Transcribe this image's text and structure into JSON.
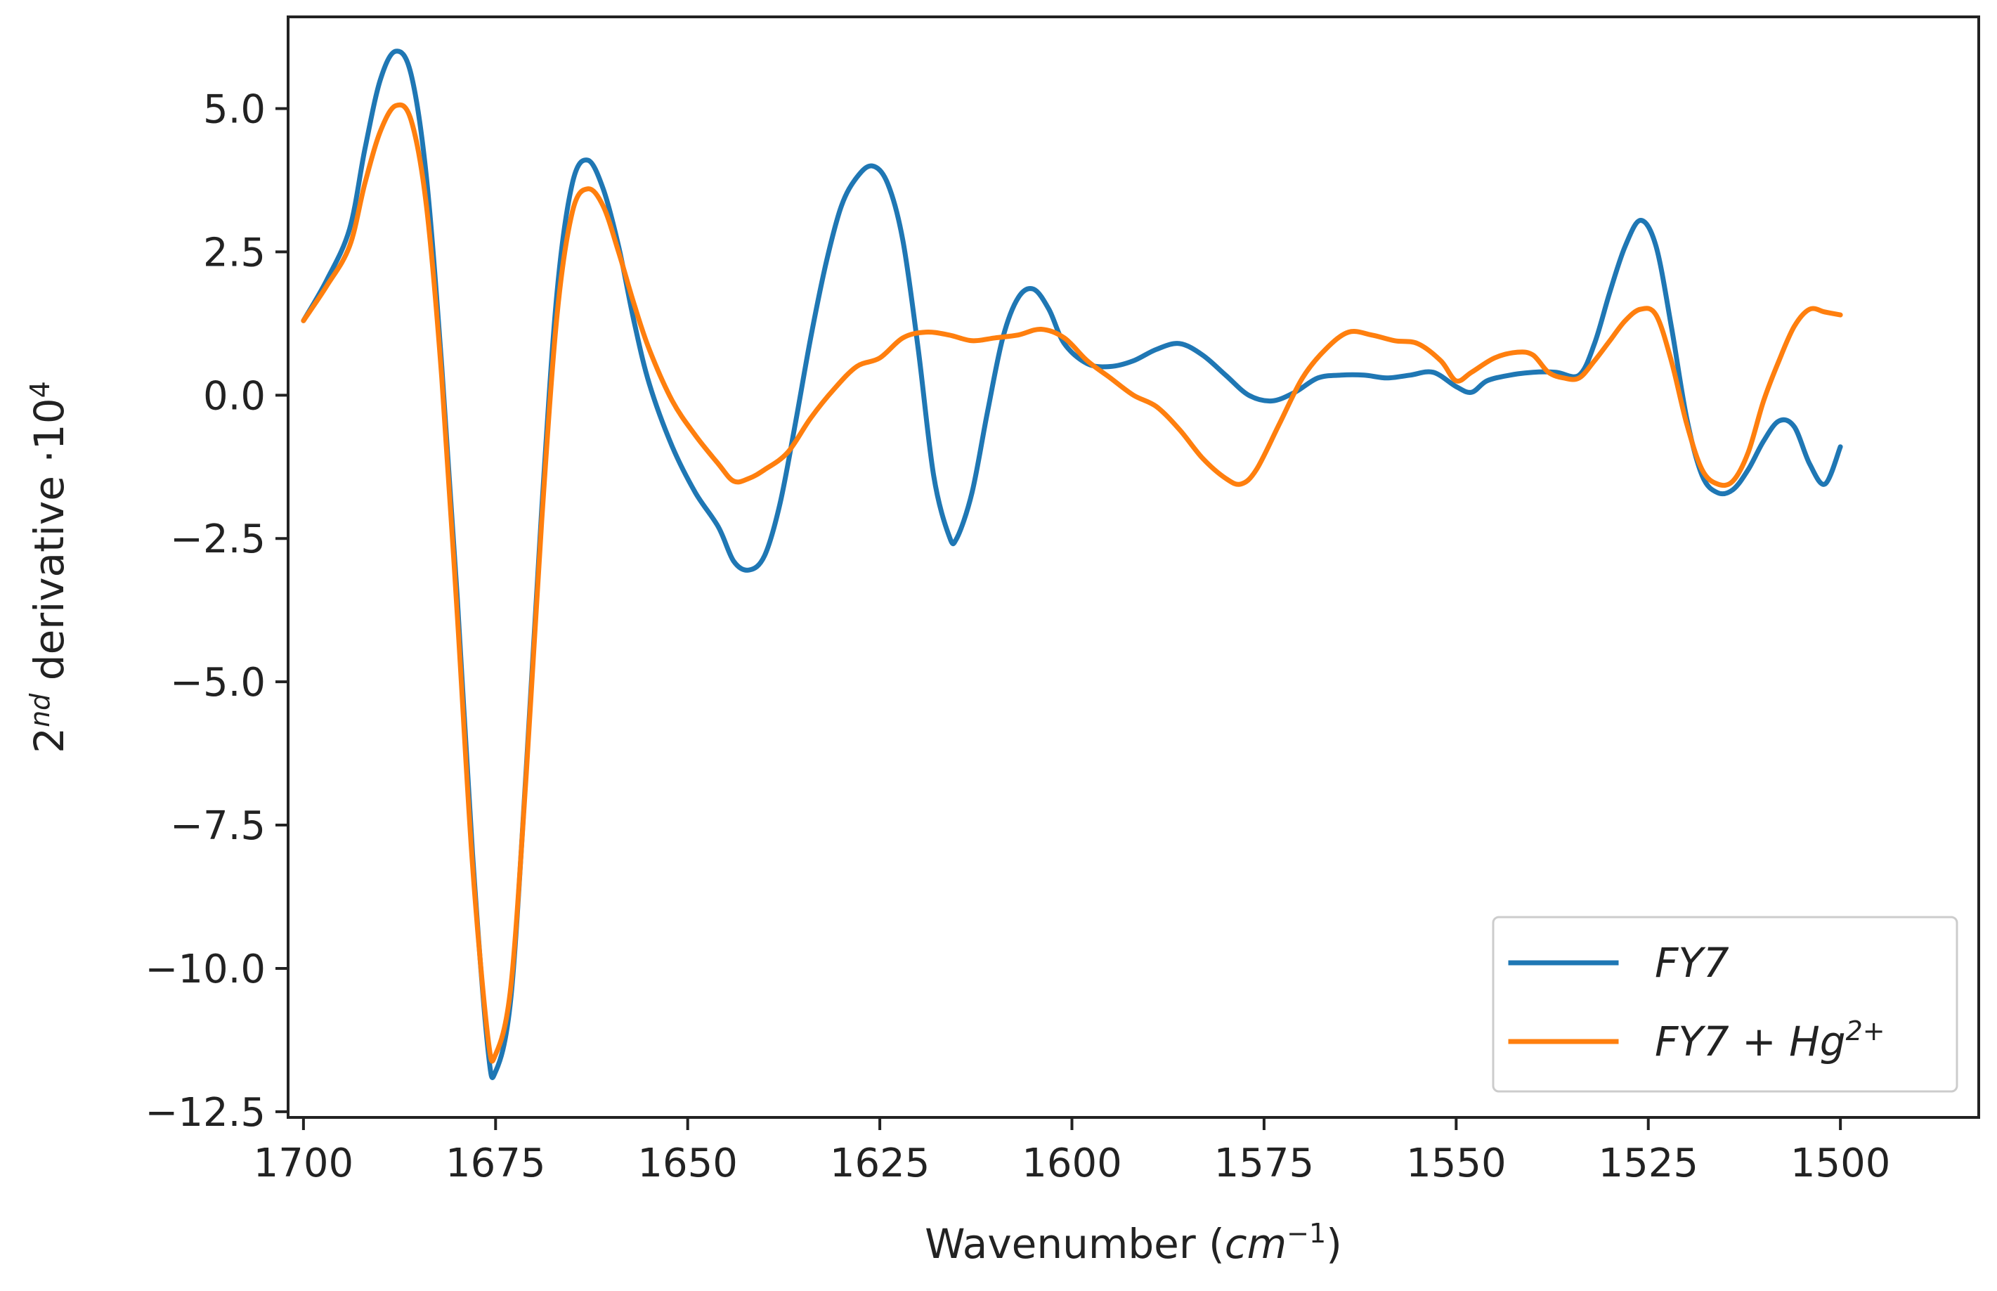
{
  "chart_data": {
    "type": "line",
    "title": "",
    "xlabel": {
      "prefix": "Wavenumber (",
      "base": "cm",
      "sup": "−1",
      "suffix": ")"
    },
    "ylabel": {
      "base": "2",
      "sup1": "nd",
      "mid": " derivative ·10",
      "sup2": "4"
    },
    "xlim": [
      1702,
      1482
    ],
    "ylim": [
      -12.6,
      6.6
    ],
    "x_reversed": true,
    "grid": false,
    "legend_position": "lower-right",
    "xticks": [
      1700,
      1675,
      1650,
      1625,
      1600,
      1575,
      1550,
      1525,
      1500
    ],
    "xtick_labels": [
      "1700",
      "1675",
      "1650",
      "1625",
      "1600",
      "1575",
      "1550",
      "1525",
      "1500"
    ],
    "yticks": [
      5.0,
      2.5,
      0.0,
      -2.5,
      -5.0,
      -7.5,
      -10.0,
      -12.5
    ],
    "ytick_labels": [
      "5.0",
      "2.5",
      "0.0",
      "−2.5",
      "−5.0",
      "−7.5",
      "−10.0",
      "−12.5"
    ],
    "series": [
      {
        "name": "FY7",
        "legend": {
          "base": "FY7",
          "suffix": "",
          "sup": ""
        },
        "color": "#1f77b4",
        "points": [
          [
            1700,
            1.3
          ],
          [
            1697,
            2.0
          ],
          [
            1694,
            2.9
          ],
          [
            1692,
            4.3
          ],
          [
            1690,
            5.5
          ],
          [
            1688,
            6.0
          ],
          [
            1686,
            5.6
          ],
          [
            1684,
            3.8
          ],
          [
            1682,
            0.5
          ],
          [
            1680,
            -3.5
          ],
          [
            1678,
            -8.0
          ],
          [
            1676,
            -11.4
          ],
          [
            1675,
            -11.8
          ],
          [
            1673,
            -10.5
          ],
          [
            1671,
            -6.5
          ],
          [
            1669,
            -2.0
          ],
          [
            1667,
            1.8
          ],
          [
            1665,
            3.7
          ],
          [
            1663,
            4.1
          ],
          [
            1661,
            3.6
          ],
          [
            1659,
            2.6
          ],
          [
            1657,
            1.3
          ],
          [
            1655,
            0.2
          ],
          [
            1652,
            -0.9
          ],
          [
            1649,
            -1.7
          ],
          [
            1646,
            -2.3
          ],
          [
            1644,
            -2.9
          ],
          [
            1642,
            -3.05
          ],
          [
            1640,
            -2.8
          ],
          [
            1638,
            -1.9
          ],
          [
            1636,
            -0.5
          ],
          [
            1634,
            1.0
          ],
          [
            1632,
            2.3
          ],
          [
            1630,
            3.3
          ],
          [
            1628,
            3.8
          ],
          [
            1626,
            4.0
          ],
          [
            1624,
            3.7
          ],
          [
            1622,
            2.7
          ],
          [
            1620,
            0.8
          ],
          [
            1618,
            -1.4
          ],
          [
            1616,
            -2.45
          ],
          [
            1615,
            -2.5
          ],
          [
            1613,
            -1.7
          ],
          [
            1611,
            -0.3
          ],
          [
            1609,
            1.0
          ],
          [
            1607,
            1.7
          ],
          [
            1605,
            1.85
          ],
          [
            1603,
            1.5
          ],
          [
            1601,
            0.9
          ],
          [
            1598,
            0.55
          ],
          [
            1595,
            0.5
          ],
          [
            1592,
            0.6
          ],
          [
            1589,
            0.8
          ],
          [
            1586,
            0.9
          ],
          [
            1583,
            0.7
          ],
          [
            1580,
            0.35
          ],
          [
            1577,
            0.0
          ],
          [
            1574,
            -0.1
          ],
          [
            1571,
            0.05
          ],
          [
            1568,
            0.3
          ],
          [
            1565,
            0.35
          ],
          [
            1562,
            0.35
          ],
          [
            1559,
            0.3
          ],
          [
            1556,
            0.35
          ],
          [
            1553,
            0.4
          ],
          [
            1550,
            0.15
          ],
          [
            1548,
            0.05
          ],
          [
            1546,
            0.25
          ],
          [
            1543,
            0.35
          ],
          [
            1540,
            0.4
          ],
          [
            1537,
            0.4
          ],
          [
            1534,
            0.35
          ],
          [
            1532,
            0.9
          ],
          [
            1530,
            1.8
          ],
          [
            1528,
            2.6
          ],
          [
            1526,
            3.05
          ],
          [
            1524,
            2.6
          ],
          [
            1522,
            1.2
          ],
          [
            1520,
            -0.4
          ],
          [
            1518,
            -1.4
          ],
          [
            1516,
            -1.7
          ],
          [
            1514,
            -1.65
          ],
          [
            1512,
            -1.3
          ],
          [
            1510,
            -0.8
          ],
          [
            1508,
            -0.45
          ],
          [
            1506,
            -0.55
          ],
          [
            1504,
            -1.2
          ],
          [
            1502,
            -1.55
          ],
          [
            1500,
            -0.9
          ]
        ]
      },
      {
        "name": "FY7 + Hg²⁺",
        "legend": {
          "base": "FY7",
          "suffix": " + Hg",
          "sup": "2+"
        },
        "color": "#ff7f0e",
        "points": [
          [
            1700,
            1.3
          ],
          [
            1697,
            1.9
          ],
          [
            1694,
            2.6
          ],
          [
            1692,
            3.7
          ],
          [
            1690,
            4.6
          ],
          [
            1688,
            5.05
          ],
          [
            1686,
            4.8
          ],
          [
            1684,
            3.3
          ],
          [
            1682,
            0.3
          ],
          [
            1680,
            -3.8
          ],
          [
            1678,
            -8.2
          ],
          [
            1676,
            -11.2
          ],
          [
            1675,
            -11.5
          ],
          [
            1673,
            -10.3
          ],
          [
            1671,
            -6.6
          ],
          [
            1669,
            -2.2
          ],
          [
            1667,
            1.4
          ],
          [
            1665,
            3.2
          ],
          [
            1663,
            3.6
          ],
          [
            1661,
            3.3
          ],
          [
            1659,
            2.5
          ],
          [
            1657,
            1.6
          ],
          [
            1655,
            0.8
          ],
          [
            1652,
            -0.1
          ],
          [
            1649,
            -0.7
          ],
          [
            1646,
            -1.2
          ],
          [
            1644,
            -1.5
          ],
          [
            1642,
            -1.45
          ],
          [
            1640,
            -1.3
          ],
          [
            1637,
            -1.0
          ],
          [
            1634,
            -0.4
          ],
          [
            1631,
            0.1
          ],
          [
            1628,
            0.5
          ],
          [
            1625,
            0.65
          ],
          [
            1622,
            1.0
          ],
          [
            1619,
            1.1
          ],
          [
            1616,
            1.05
          ],
          [
            1613,
            0.95
          ],
          [
            1610,
            1.0
          ],
          [
            1607,
            1.05
          ],
          [
            1604,
            1.15
          ],
          [
            1601,
            1.0
          ],
          [
            1598,
            0.6
          ],
          [
            1595,
            0.3
          ],
          [
            1592,
            0.0
          ],
          [
            1589,
            -0.2
          ],
          [
            1586,
            -0.6
          ],
          [
            1583,
            -1.1
          ],
          [
            1580,
            -1.45
          ],
          [
            1578,
            -1.55
          ],
          [
            1576,
            -1.3
          ],
          [
            1573,
            -0.5
          ],
          [
            1570,
            0.3
          ],
          [
            1567,
            0.8
          ],
          [
            1564,
            1.1
          ],
          [
            1561,
            1.05
          ],
          [
            1558,
            0.95
          ],
          [
            1555,
            0.9
          ],
          [
            1552,
            0.6
          ],
          [
            1550,
            0.25
          ],
          [
            1548,
            0.4
          ],
          [
            1545,
            0.65
          ],
          [
            1542,
            0.75
          ],
          [
            1540,
            0.7
          ],
          [
            1538,
            0.4
          ],
          [
            1536,
            0.3
          ],
          [
            1534,
            0.3
          ],
          [
            1532,
            0.6
          ],
          [
            1530,
            0.95
          ],
          [
            1528,
            1.3
          ],
          [
            1526,
            1.5
          ],
          [
            1524,
            1.4
          ],
          [
            1522,
            0.6
          ],
          [
            1520,
            -0.5
          ],
          [
            1518,
            -1.3
          ],
          [
            1516,
            -1.55
          ],
          [
            1514,
            -1.5
          ],
          [
            1512,
            -1.0
          ],
          [
            1510,
            -0.1
          ],
          [
            1508,
            0.6
          ],
          [
            1506,
            1.2
          ],
          [
            1504,
            1.5
          ],
          [
            1502,
            1.45
          ],
          [
            1500,
            1.4
          ]
        ]
      }
    ]
  }
}
